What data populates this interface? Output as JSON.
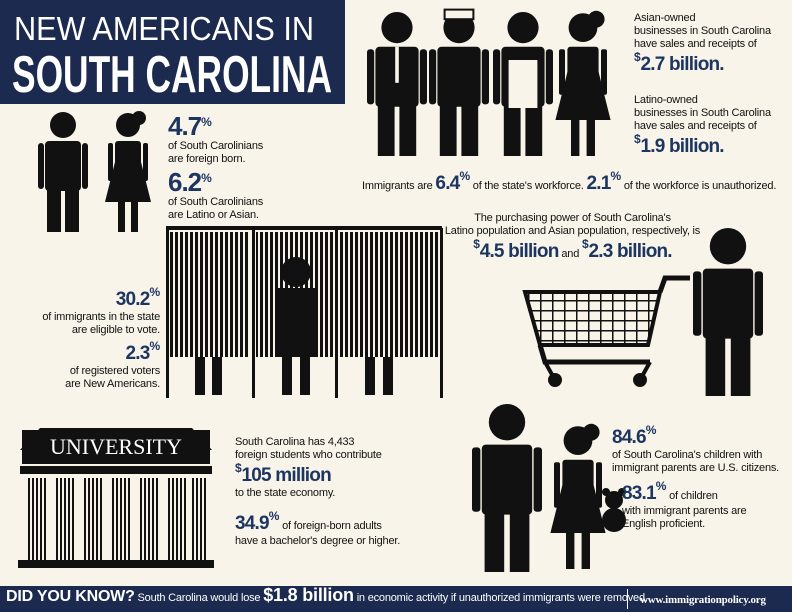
{
  "header": {
    "title_line1": "NEW AMERICANS IN",
    "title_line2": "SOUTH CAROLINA"
  },
  "population": [
    {
      "number": "4.7",
      "unit": "%",
      "lines": [
        "of South Carolinians",
        "are foreign born."
      ]
    },
    {
      "number": "6.2",
      "unit": "%",
      "lines": [
        "of South Carolinians",
        "are Latino or Asian."
      ]
    }
  ],
  "business": [
    {
      "lines": [
        "Asian-owned",
        "businesses in South Carolina",
        "have sales and receipts of"
      ],
      "prefix": "$",
      "amount": "2.7 billion."
    },
    {
      "lines": [
        "Latino-owned",
        "businesses in South Carolina",
        "have sales and receipts of"
      ],
      "prefix": "$",
      "amount": "1.9 billion."
    }
  ],
  "workforce": {
    "lead": "Immigrants are",
    "share": "6.4",
    "share_unit": "%",
    "middle": "of the state's workforce.",
    "unauthorized": "2.1",
    "unauthorized_unit": "%",
    "tail": "of the workforce is unauthorized."
  },
  "purchasing": {
    "lines": [
      "The purchasing power of South Carolina's",
      "Latino population and Asian population, respectively, is"
    ],
    "latino_prefix": "$",
    "latino": "4.5 billion",
    "joiner": "and",
    "asian_prefix": "$",
    "asian": "2.3 billion."
  },
  "voting": [
    {
      "number": "30.2",
      "unit": "%",
      "lines": [
        "of immigrants in the state",
        "are eligible to vote."
      ]
    },
    {
      "number": "2.3",
      "unit": "%",
      "lines": [
        "of registered voters",
        "are New Americans."
      ]
    }
  ],
  "education": {
    "sign": "UNIVERSITY",
    "students_lines": [
      "South Carolina has 4,433",
      "foreign students who contribute"
    ],
    "contribution_prefix": "$",
    "contribution": "105 million",
    "contribution_tail": "to the state economy.",
    "degree": "34.9",
    "degree_unit": "%",
    "degree_lines": [
      "of foreign-born adults",
      "have a bachelor's degree or higher."
    ]
  },
  "children": [
    {
      "number": "84.6",
      "unit": "%",
      "lead": "",
      "lines": [
        "of South Carolina's children with",
        "immigrant parents are U.S. citizens."
      ]
    },
    {
      "number": "83.1",
      "unit": "%",
      "lead": "of children",
      "lines": [
        "with immigrant parents are",
        "English proficient."
      ]
    }
  ],
  "footer": {
    "label": "DID YOU KNOW?",
    "lead": "South Carolina would lose",
    "amount": "$1.8 billion",
    "tail": "in economic activity if unauthorized immigrants were removed.",
    "url": "www.immigrationpolicy.org"
  }
}
